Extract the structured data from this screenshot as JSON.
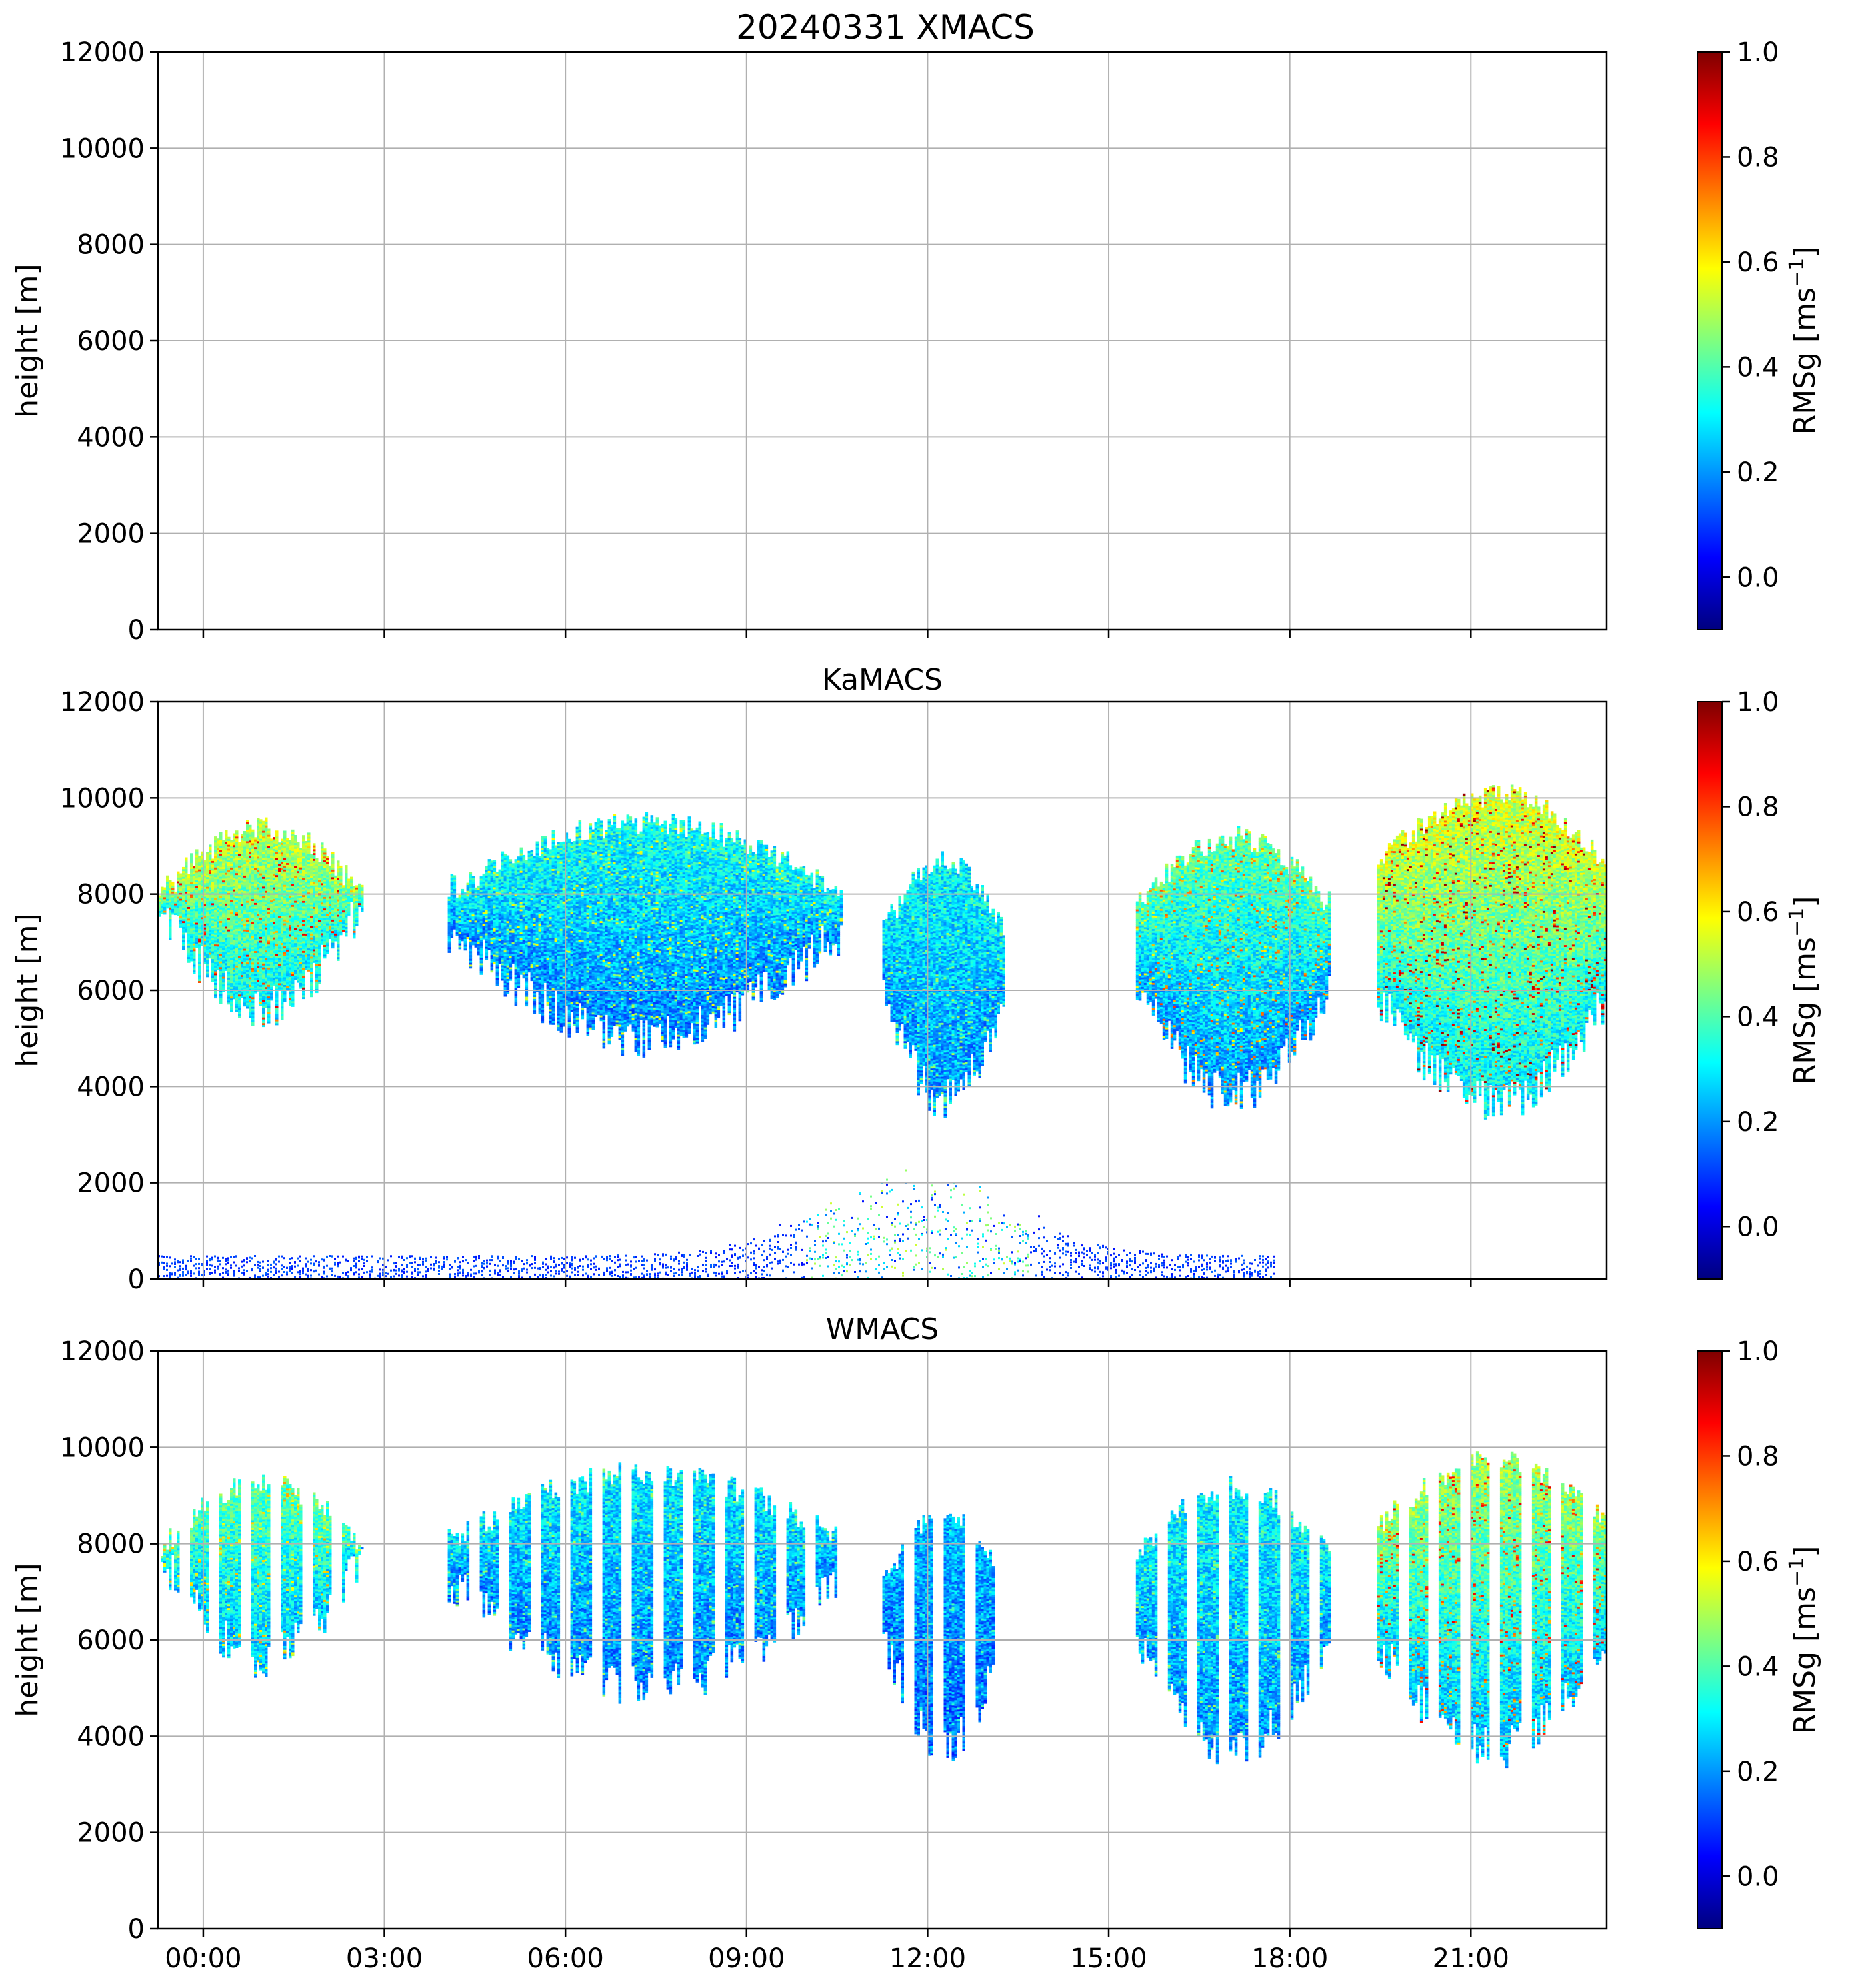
{
  "figure_title": "20240331 XMACS",
  "colors": {
    "jet_stops": [
      "#00007f",
      "#0000ff",
      "#007fff",
      "#00ffff",
      "#7fff7f",
      "#ffff00",
      "#ff7f00",
      "#ff0000",
      "#7f0000"
    ],
    "grid": "#b0b0b0",
    "axes": "#000000"
  },
  "chart_data": [
    {
      "type": "heatmap",
      "title": "20240331 XMACS",
      "xlabel": "",
      "ylabel": "height [m]",
      "x_range_hours": [
        -0.5,
        23.5
      ],
      "x_ticks": [
        "00:00",
        "03:00",
        "06:00",
        "09:00",
        "12:00",
        "15:00",
        "18:00",
        "21:00"
      ],
      "x_tick_hours": [
        0.25,
        3.25,
        6.25,
        9.25,
        12.25,
        15.25,
        18.25,
        21.25
      ],
      "x_ticklabels_shown": false,
      "ylim": [
        0,
        12000
      ],
      "y_ticks": [
        0,
        2000,
        4000,
        6000,
        8000,
        10000,
        12000
      ],
      "grid": true,
      "colorbar": {
        "label": "RMSg [ms",
        "label_sup": "−1",
        "label_end": "]",
        "range": [
          -0.1,
          1.0
        ],
        "ticks": [
          "0.0",
          "0.2",
          "0.4",
          "0.6",
          "0.8",
          "1.0"
        ]
      },
      "cloud_regions": []
    },
    {
      "type": "heatmap",
      "title": "KaMACS",
      "xlabel": "",
      "ylabel": "height [m]",
      "x_range_hours": [
        -0.5,
        23.5
      ],
      "x_ticks": [
        "00:00",
        "03:00",
        "06:00",
        "09:00",
        "12:00",
        "15:00",
        "18:00",
        "21:00"
      ],
      "x_tick_hours": [
        0.25,
        3.25,
        6.25,
        9.25,
        12.25,
        15.25,
        18.25,
        21.25
      ],
      "x_ticklabels_shown": false,
      "ylim": [
        0,
        12000
      ],
      "y_ticks": [
        0,
        2000,
        4000,
        6000,
        8000,
        10000,
        12000
      ],
      "grid": true,
      "colorbar": {
        "label": "RMSg [ms",
        "label_sup": "−1",
        "label_end": "]",
        "range": [
          -0.1,
          1.0
        ],
        "ticks": [
          "0.0",
          "0.2",
          "0.4",
          "0.6",
          "0.8",
          "1.0"
        ]
      },
      "cloud_regions": [
        {
          "start_hour": -0.5,
          "end_hour": 2.9,
          "top_m": 9600,
          "bottom_m": 5200,
          "typical_value": 0.3,
          "max_value": 0.9
        },
        {
          "start_hour": 4.3,
          "end_hour": 10.8,
          "top_m": 9700,
          "bottom_m": 4600,
          "typical_value": 0.18,
          "max_value": 0.6
        },
        {
          "start_hour": 11.5,
          "end_hour": 13.5,
          "top_m": 8900,
          "bottom_m": 3300,
          "typical_value": 0.2,
          "max_value": 0.5
        },
        {
          "start_hour": 15.7,
          "end_hour": 18.9,
          "top_m": 9400,
          "bottom_m": 3400,
          "typical_value": 0.2,
          "max_value": 0.8
        },
        {
          "start_hour": 19.7,
          "end_hour": 23.5,
          "top_m": 10300,
          "bottom_m": 3200,
          "typical_value": 0.3,
          "max_value": 1.0
        },
        {
          "start_hour": -0.5,
          "end_hour": 18.0,
          "top_m": 2500,
          "bottom_m": 0,
          "typical_value": 0.05,
          "max_value": 0.5
        }
      ]
    },
    {
      "type": "heatmap",
      "title": "WMACS",
      "xlabel": "",
      "ylabel": "height [m]",
      "x_range_hours": [
        -0.5,
        23.5
      ],
      "x_ticks": [
        "00:00",
        "03:00",
        "06:00",
        "09:00",
        "12:00",
        "15:00",
        "18:00",
        "21:00"
      ],
      "x_tick_hours": [
        0.25,
        3.25,
        6.25,
        9.25,
        12.25,
        15.25,
        18.25,
        21.25
      ],
      "x_ticklabels_shown": true,
      "ylim": [
        0,
        12000
      ],
      "y_ticks": [
        0,
        2000,
        4000,
        6000,
        8000,
        10000,
        12000
      ],
      "grid": true,
      "colorbar": {
        "label": "RMSg [ms",
        "label_sup": "−1",
        "label_end": "]",
        "range": [
          -0.1,
          1.0
        ],
        "ticks": [
          "0.0",
          "0.2",
          "0.4",
          "0.6",
          "0.8",
          "1.0"
        ]
      },
      "cloud_regions": [
        {
          "start_hour": -0.5,
          "end_hour": 2.9,
          "top_m": 9500,
          "bottom_m": 5200,
          "typical_value": 0.25,
          "max_value": 0.7,
          "striped": true
        },
        {
          "start_hour": 4.3,
          "end_hour": 10.8,
          "top_m": 9700,
          "bottom_m": 4600,
          "typical_value": 0.18,
          "max_value": 0.5,
          "striped": true
        },
        {
          "start_hour": 11.5,
          "end_hour": 13.5,
          "top_m": 8800,
          "bottom_m": 3400,
          "typical_value": 0.15,
          "max_value": 0.4,
          "striped": true
        },
        {
          "start_hour": 15.7,
          "end_hour": 18.9,
          "top_m": 9400,
          "bottom_m": 3300,
          "typical_value": 0.2,
          "max_value": 0.5,
          "striped": true
        },
        {
          "start_hour": 19.7,
          "end_hour": 23.5,
          "top_m": 10000,
          "bottom_m": 3300,
          "typical_value": 0.25,
          "max_value": 0.9,
          "striped": true
        }
      ]
    }
  ]
}
